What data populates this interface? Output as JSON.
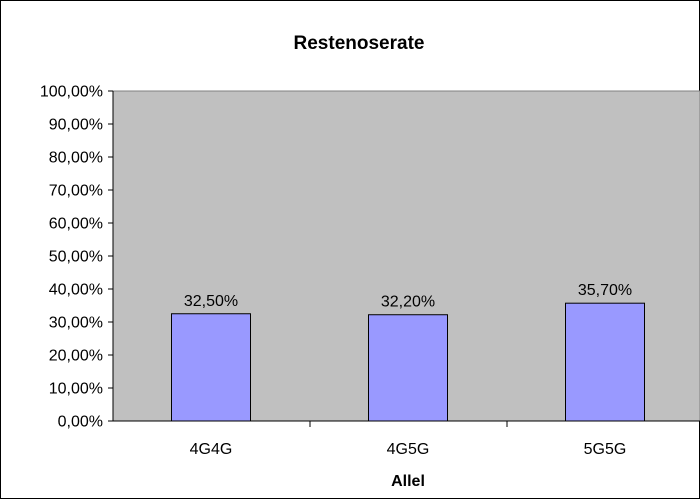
{
  "chart_data": {
    "type": "bar",
    "title": "Restenoserate",
    "xlabel": "Allel",
    "ylabel": "",
    "categories": [
      "4G4G",
      "4G5G",
      "5G5G"
    ],
    "values": [
      32.5,
      32.2,
      35.7
    ],
    "value_labels": [
      "32,50%",
      "32,20%",
      "35,70%"
    ],
    "ylim": [
      0,
      100
    ],
    "y_ticks": [
      "0,00%",
      "10,00%",
      "20,00%",
      "30,00%",
      "40,00%",
      "50,00%",
      "60,00%",
      "70,00%",
      "80,00%",
      "90,00%",
      "100,00%"
    ],
    "grid": false,
    "legend": "none",
    "colors": {
      "plot_background": "#c0c0c0",
      "bar_fill": "#9999ff",
      "bar_stroke": "#000000"
    }
  }
}
